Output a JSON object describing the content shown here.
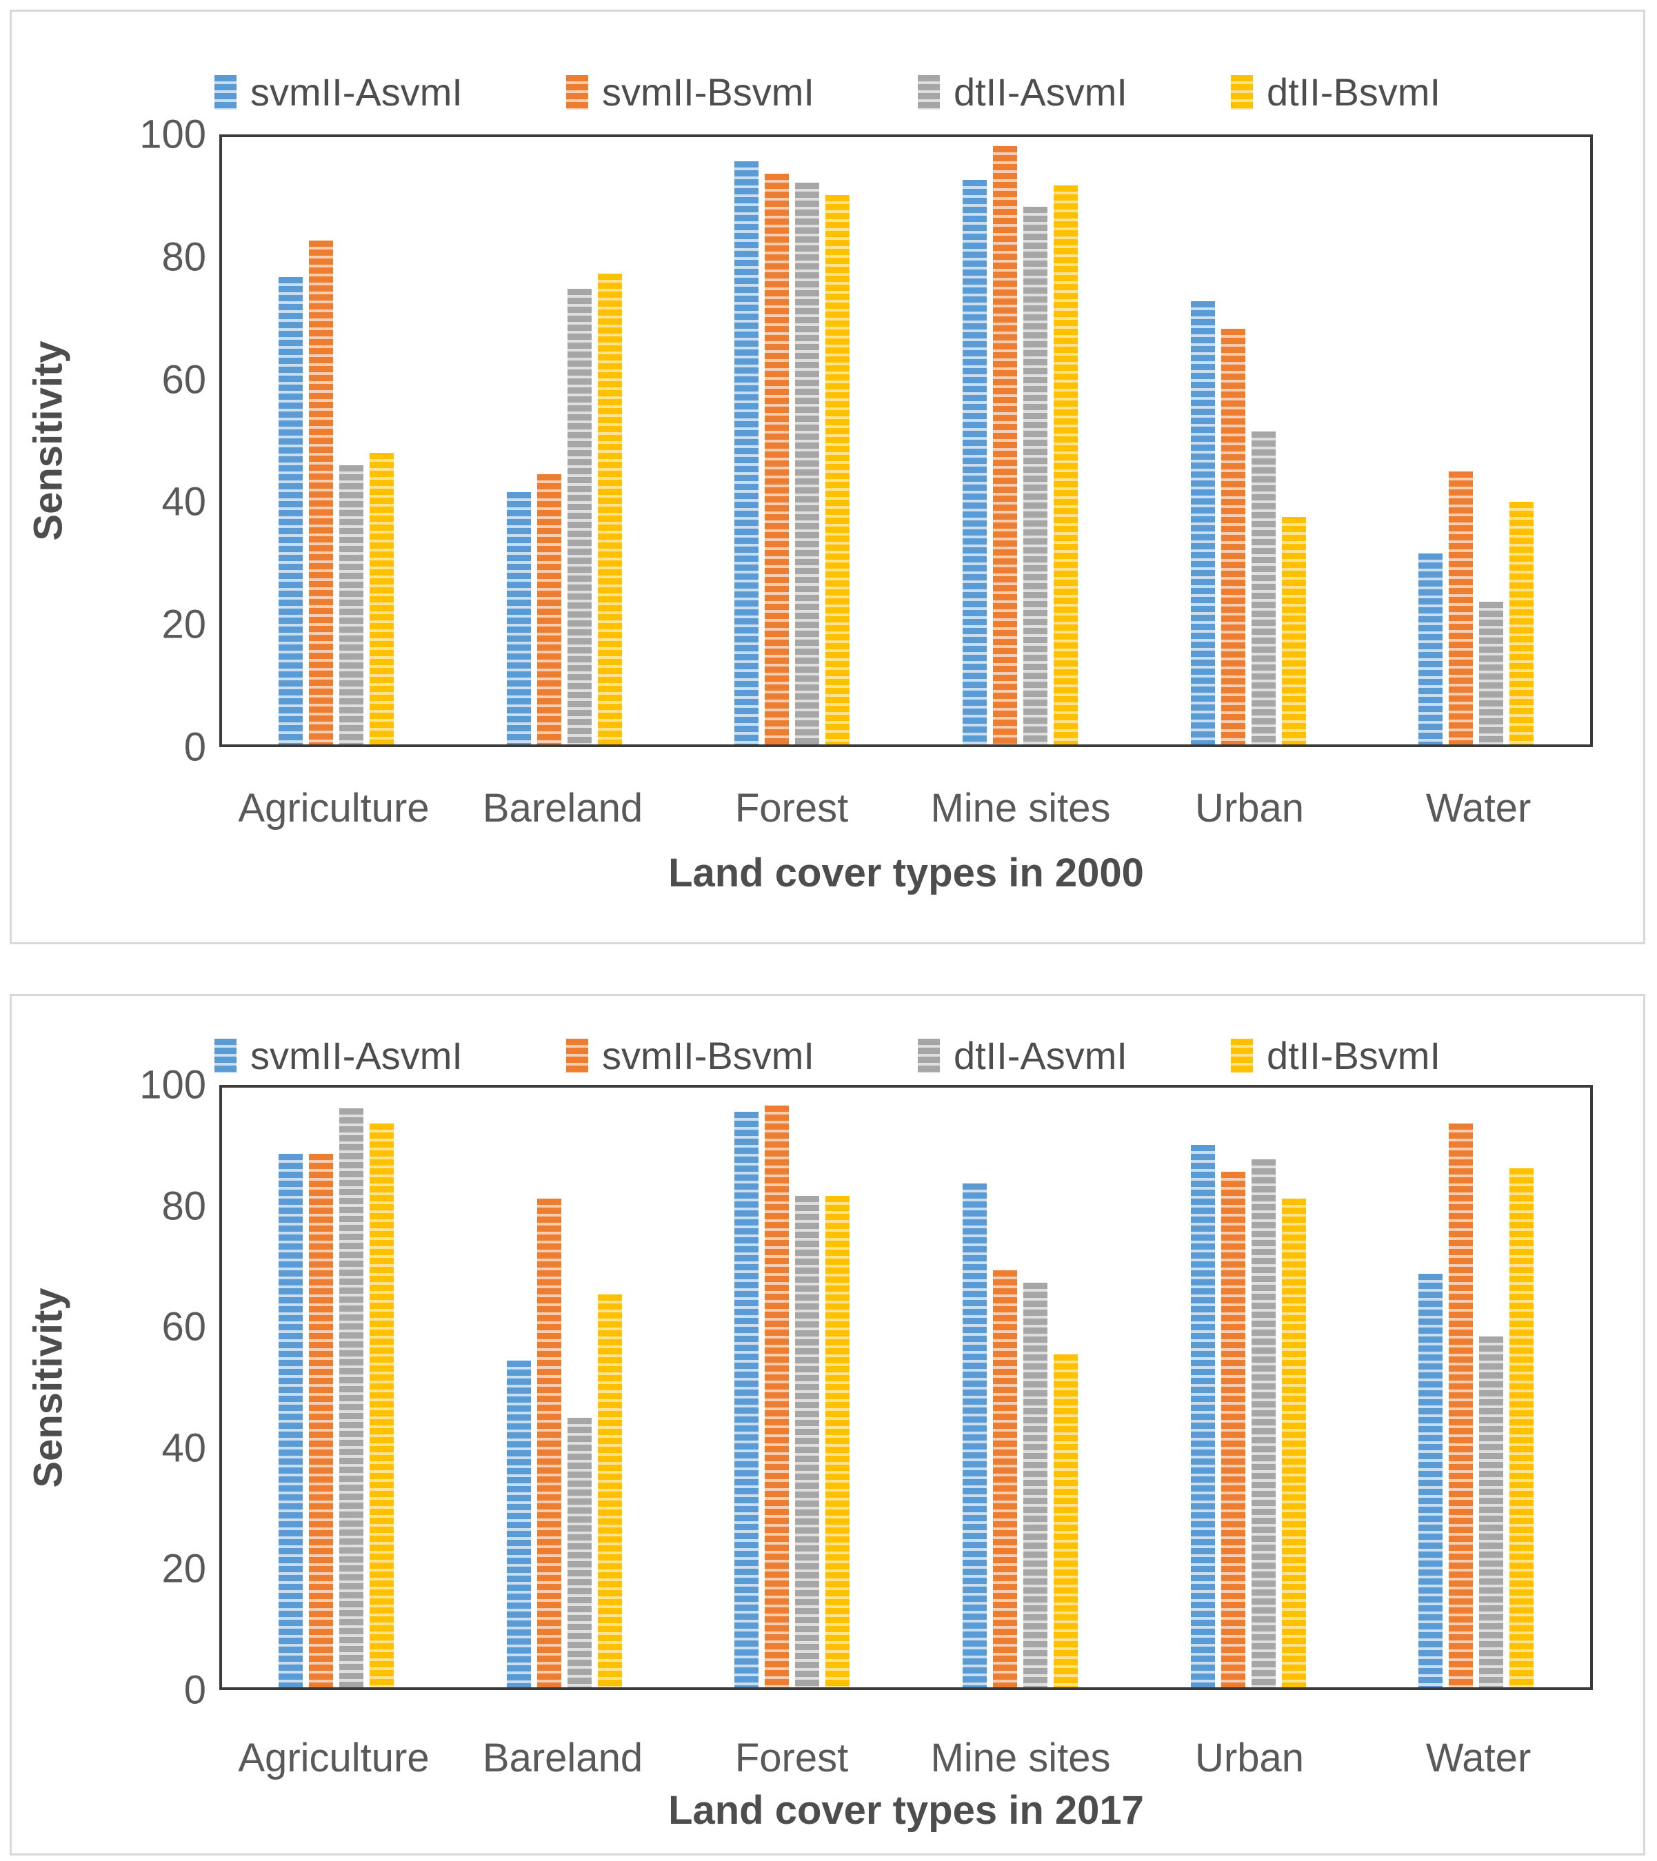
{
  "page": {
    "background": "#ffffff",
    "panel_border": "#d8d8d8",
    "axis_color": "#3b3b3b",
    "text_color": "#595959"
  },
  "chart_data": [
    {
      "type": "bar",
      "title": "",
      "xlabel": "Land cover types in 2000",
      "ylabel": "Sensitivity",
      "categories": [
        "Agriculture",
        "Bareland",
        "Forest",
        "Mine sites",
        "Urban",
        "Water"
      ],
      "series": [
        {
          "name": "svmII-AsvmI",
          "color": "#5B9BD5",
          "light": "#C9DEF1",
          "values": [
            77,
            41.5,
            96,
            93,
            73,
            31.5
          ]
        },
        {
          "name": "svmII-BsvmI",
          "color": "#ED7D31",
          "light": "#F9CDB2",
          "values": [
            83,
            44.5,
            94,
            98.5,
            68.5,
            45
          ]
        },
        {
          "name": "dtII-AsvmI",
          "color": "#A6A6A6",
          "light": "#DFDFDF",
          "values": [
            46,
            75,
            92.5,
            88.5,
            51.5,
            23.5
          ]
        },
        {
          "name": "dtII-BsvmI",
          "color": "#FFC000",
          "light": "#FFE38E",
          "values": [
            48,
            77.5,
            90.5,
            92,
            37.5,
            40
          ]
        }
      ],
      "ylim": [
        0,
        100
      ],
      "yticks": [
        0,
        20,
        40,
        60,
        80,
        100
      ],
      "legend_position": "top",
      "grid": false
    },
    {
      "type": "bar",
      "title": "",
      "xlabel": "Land cover types in 2017",
      "ylabel": "Sensitivity",
      "categories": [
        "Agriculture",
        "Bareland",
        "Forest",
        "Mine sites",
        "Urban",
        "Water"
      ],
      "series": [
        {
          "name": "svmII-AsvmI",
          "color": "#5B9BD5",
          "light": "#C9DEF1",
          "values": [
            89,
            54.5,
            96,
            84,
            90.5,
            69
          ]
        },
        {
          "name": "svmII-BsvmI",
          "color": "#ED7D31",
          "light": "#F9CDB2",
          "values": [
            89,
            81.5,
            97,
            69.5,
            86,
            94
          ]
        },
        {
          "name": "dtII-AsvmI",
          "color": "#A6A6A6",
          "light": "#DFDFDF",
          "values": [
            96.5,
            45,
            82,
            67.5,
            88,
            58.5
          ]
        },
        {
          "name": "dtII-BsvmI",
          "color": "#FFC000",
          "light": "#FFE38E",
          "values": [
            94,
            65.5,
            82,
            55.5,
            81.5,
            86.5
          ]
        }
      ],
      "ylim": [
        0,
        100
      ],
      "yticks": [
        0,
        20,
        40,
        60,
        80,
        100
      ],
      "legend_position": "top",
      "grid": false
    }
  ]
}
